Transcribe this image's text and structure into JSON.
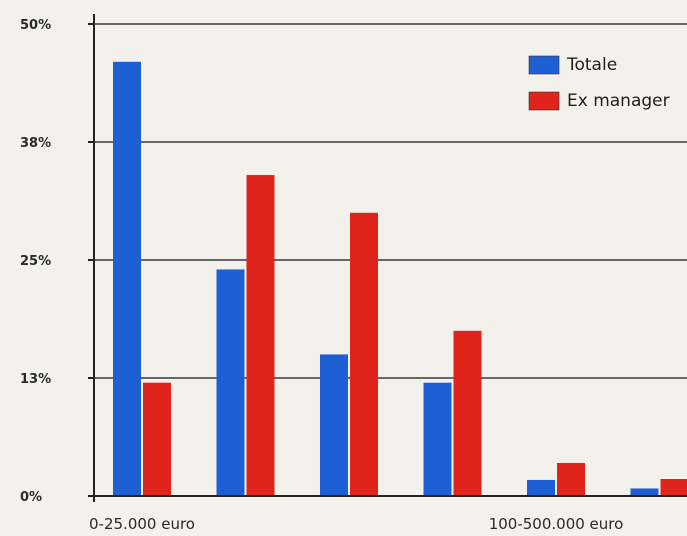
{
  "chart_data": {
    "type": "bar",
    "title": "",
    "xlabel": "",
    "ylabel": "",
    "ylim": [
      0,
      50
    ],
    "grid": true,
    "legend_position": "top-right",
    "y_ticks": [
      {
        "value": 0,
        "label": "0%"
      },
      {
        "value": 12.5,
        "label": "13%"
      },
      {
        "value": 25,
        "label": "25%"
      },
      {
        "value": 37.5,
        "label": "38%"
      },
      {
        "value": 50,
        "label": "50%"
      }
    ],
    "categories": [
      "0-25.000 euro",
      "",
      "",
      "",
      "100-500.000 euro",
      ""
    ],
    "series": [
      {
        "name": "Totale",
        "color": "#1f5fd6",
        "values": [
          46,
          24,
          15,
          12,
          1.7,
          0.8
        ]
      },
      {
        "name": "Ex manager",
        "color": "#e0231b",
        "values": [
          12,
          34,
          30,
          17.5,
          3.5,
          1.8
        ]
      }
    ]
  }
}
